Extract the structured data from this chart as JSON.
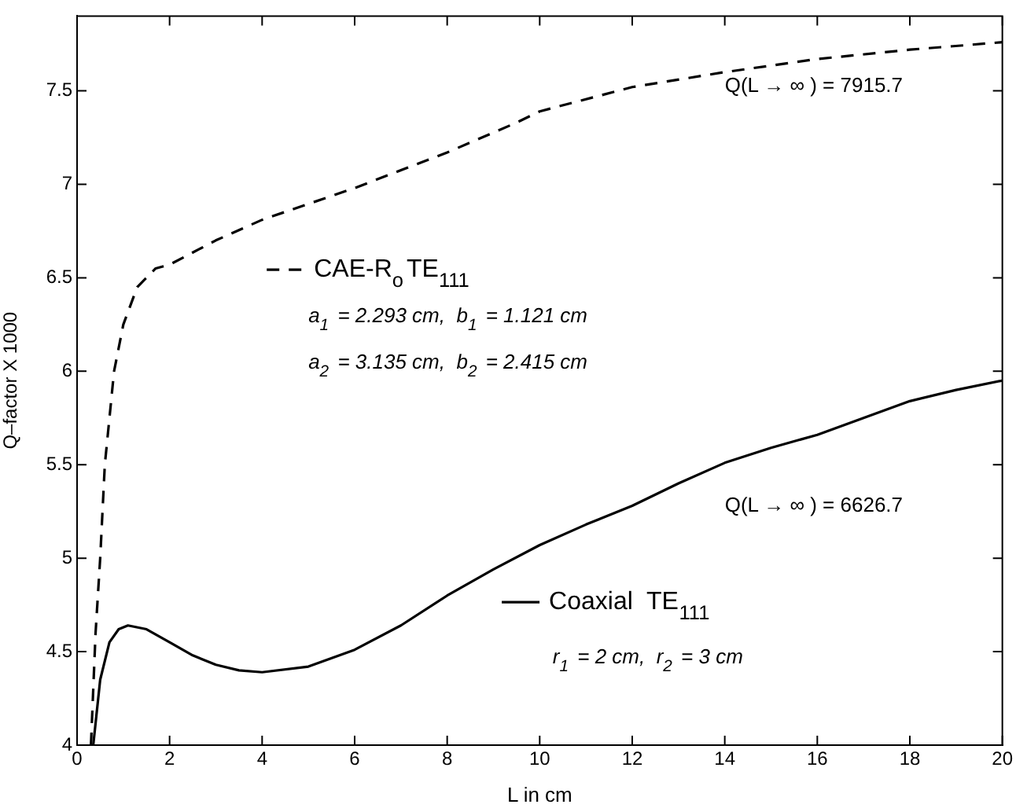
{
  "chart_data": {
    "type": "line",
    "xlabel": "L in cm",
    "ylabel": "Q–factor X 1000",
    "xlim": [
      0,
      20
    ],
    "xticks": [
      0,
      2,
      4,
      6,
      8,
      10,
      12,
      14,
      16,
      18,
      20
    ],
    "ylim": [
      4,
      7.9
    ],
    "yticks": [
      4,
      4.5,
      5,
      5.5,
      6,
      6.5,
      7,
      7.5
    ],
    "grid": false,
    "legend": "center left",
    "marker": "none",
    "series": [
      {
        "name": "CAE-R$_{o}$TE$_{111}$",
        "color": "#000000",
        "line_style": "dashed",
        "x": [
          0.3,
          0.35,
          0.4,
          0.5,
          0.6,
          0.8,
          1,
          1.3,
          1.7,
          2,
          3,
          4,
          6,
          8,
          9.5,
          10,
          12,
          14,
          16,
          18,
          20
        ],
        "values": [
          4,
          4.3,
          4.6,
          5,
          5.5,
          6,
          6.25,
          6.45,
          6.55,
          6.57,
          6.7,
          6.81,
          6.98,
          7.17,
          7.33,
          7.39,
          7.52,
          7.6,
          7.67,
          7.72,
          7.76
        ]
      },
      {
        "name": "Coaxial  TE$_{111}$",
        "color": "#000000",
        "line_style": "solid",
        "x": [
          0.35,
          0.5,
          0.7,
          0.9,
          1.1,
          1.5,
          2,
          2.5,
          3,
          3.5,
          4,
          5,
          6,
          7,
          8,
          9,
          10,
          11,
          12,
          13,
          14,
          15,
          16,
          17,
          18,
          19,
          20
        ],
        "values": [
          4,
          4.35,
          4.55,
          4.62,
          4.64,
          4.62,
          4.55,
          4.48,
          4.43,
          4.4,
          4.39,
          4.42,
          4.51,
          4.64,
          4.8,
          4.94,
          5.07,
          5.18,
          5.28,
          5.4,
          5.51,
          5.59,
          5.66,
          5.75,
          5.84,
          5.9,
          5.95
        ]
      }
    ],
    "annotations": [
      "a$_{1}$ = 2.293 cm,  b$_{1}$ = 1.121 cm",
      "a$_{2}$ = 3.135 cm,  b$_{2}$ = 2.415 cm",
      "Q(L → ∞ ) = 7915.7",
      "Q(L → ∞ ) = 6626.7",
      "r$_{1}$ = 2 cm,  r$_{2}$ = 3 cm"
    ]
  }
}
